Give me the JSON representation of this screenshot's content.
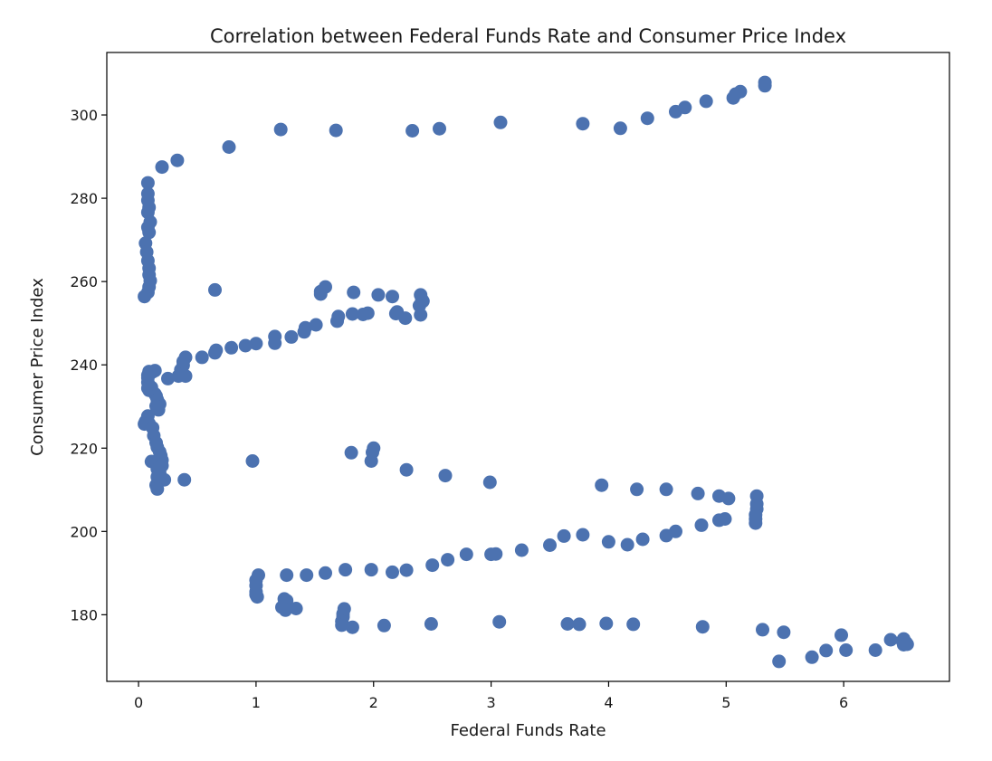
{
  "chart_data": {
    "type": "scatter",
    "title": "Correlation between Federal Funds Rate and Consumer Price Index",
    "xlabel": "Federal Funds Rate",
    "ylabel": "Consumer Price Index",
    "xlim": [
      -0.27,
      6.9
    ],
    "ylim": [
      164,
      315
    ],
    "xticks": [
      0,
      1,
      2,
      3,
      4,
      5,
      6
    ],
    "yticks": [
      180,
      200,
      220,
      240,
      260,
      280,
      300
    ],
    "grid": false,
    "legend": "none",
    "marker_color": "#4c72b0",
    "points": [
      [
        5.33,
        307.0
      ],
      [
        5.33,
        307.8
      ],
      [
        5.12,
        305.6
      ],
      [
        5.08,
        305.0
      ],
      [
        5.06,
        304.1
      ],
      [
        4.83,
        303.3
      ],
      [
        4.65,
        301.8
      ],
      [
        4.57,
        300.8
      ],
      [
        4.33,
        299.2
      ],
      [
        4.1,
        296.8
      ],
      [
        3.78,
        297.9
      ],
      [
        3.08,
        298.2
      ],
      [
        2.56,
        296.7
      ],
      [
        2.33,
        296.2
      ],
      [
        1.68,
        296.3
      ],
      [
        1.21,
        296.5
      ],
      [
        0.77,
        292.3
      ],
      [
        0.33,
        289.1
      ],
      [
        0.2,
        287.5
      ],
      [
        0.08,
        283.7
      ],
      [
        0.08,
        281.1
      ],
      [
        0.08,
        279.5
      ],
      [
        0.09,
        277.8
      ],
      [
        0.08,
        276.6
      ],
      [
        0.1,
        274.3
      ],
      [
        0.08,
        273.0
      ],
      [
        0.09,
        271.8
      ],
      [
        0.06,
        269.2
      ],
      [
        0.07,
        267.1
      ],
      [
        0.08,
        265.0
      ],
      [
        0.09,
        263.2
      ],
      [
        0.09,
        261.6
      ],
      [
        0.1,
        260.2
      ],
      [
        0.09,
        258.7
      ],
      [
        0.08,
        257.4
      ],
      [
        0.05,
        256.4
      ],
      [
        0.65,
        258.0
      ],
      [
        1.55,
        257.6
      ],
      [
        1.55,
        257.0
      ],
      [
        1.59,
        258.7
      ],
      [
        1.83,
        257.4
      ],
      [
        2.04,
        256.8
      ],
      [
        2.16,
        256.4
      ],
      [
        2.4,
        256.8
      ],
      [
        2.41,
        255.7
      ],
      [
        2.42,
        255.3
      ],
      [
        2.39,
        254.2
      ],
      [
        2.4,
        252.0
      ],
      [
        2.2,
        252.7
      ],
      [
        2.27,
        251.2
      ],
      [
        2.19,
        252.3
      ],
      [
        1.95,
        252.4
      ],
      [
        1.91,
        252.1
      ],
      [
        1.82,
        252.2
      ],
      [
        1.7,
        251.6
      ],
      [
        1.69,
        250.5
      ],
      [
        1.51,
        249.6
      ],
      [
        1.42,
        248.9
      ],
      [
        1.41,
        247.9
      ],
      [
        1.3,
        246.7
      ],
      [
        1.16,
        246.8
      ],
      [
        1.16,
        245.2
      ],
      [
        1.0,
        245.1
      ],
      [
        0.91,
        244.6
      ],
      [
        0.79,
        244.1
      ],
      [
        0.66,
        243.5
      ],
      [
        0.65,
        242.9
      ],
      [
        0.54,
        241.8
      ],
      [
        0.4,
        241.8
      ],
      [
        0.38,
        240.8
      ],
      [
        0.38,
        239.9
      ],
      [
        0.36,
        238.8
      ],
      [
        0.37,
        237.7
      ],
      [
        0.34,
        237.3
      ],
      [
        0.25,
        236.7
      ],
      [
        0.4,
        237.3
      ],
      [
        0.12,
        238.3
      ],
      [
        0.14,
        238.6
      ],
      [
        0.09,
        238.4
      ],
      [
        0.08,
        237.5
      ],
      [
        0.08,
        236.9
      ],
      [
        0.08,
        235.8
      ],
      [
        0.09,
        235.1
      ],
      [
        0.08,
        234.4
      ],
      [
        0.09,
        233.9
      ],
      [
        0.11,
        234.6
      ],
      [
        0.14,
        233.0
      ],
      [
        0.15,
        232.5
      ],
      [
        0.16,
        231.6
      ],
      [
        0.18,
        230.6
      ],
      [
        0.15,
        230.1
      ],
      [
        0.17,
        229.2
      ],
      [
        0.08,
        227.7
      ],
      [
        0.06,
        226.4
      ],
      [
        0.05,
        225.8
      ],
      [
        0.09,
        225.9
      ],
      [
        0.12,
        224.9
      ],
      [
        0.13,
        223.0
      ],
      [
        0.15,
        221.3
      ],
      [
        0.16,
        220.2
      ],
      [
        0.18,
        219.1
      ],
      [
        0.19,
        218.2
      ],
      [
        0.2,
        217.1
      ],
      [
        0.11,
        216.8
      ],
      [
        0.15,
        216.2
      ],
      [
        0.2,
        215.8
      ],
      [
        0.16,
        215.0
      ],
      [
        0.18,
        214.1
      ],
      [
        0.16,
        213.1
      ],
      [
        0.22,
        212.4
      ],
      [
        0.17,
        211.9
      ],
      [
        0.15,
        211.1
      ],
      [
        0.16,
        210.2
      ],
      [
        0.39,
        212.4
      ],
      [
        0.97,
        216.9
      ],
      [
        1.81,
        218.9
      ],
      [
        2.0,
        220.0
      ],
      [
        1.99,
        219.0
      ],
      [
        1.98,
        216.9
      ],
      [
        2.28,
        214.8
      ],
      [
        2.61,
        213.4
      ],
      [
        2.99,
        211.8
      ],
      [
        3.94,
        211.1
      ],
      [
        4.24,
        210.1
      ],
      [
        4.49,
        210.1
      ],
      [
        4.76,
        209.1
      ],
      [
        4.94,
        208.5
      ],
      [
        5.02,
        207.9
      ],
      [
        5.26,
        208.5
      ],
      [
        5.26,
        206.6
      ],
      [
        5.26,
        205.4
      ],
      [
        5.25,
        204.0
      ],
      [
        5.25,
        203.0
      ],
      [
        5.25,
        202.0
      ],
      [
        4.99,
        203.0
      ],
      [
        4.94,
        202.7
      ],
      [
        4.79,
        201.5
      ],
      [
        4.57,
        200.0
      ],
      [
        4.49,
        199.0
      ],
      [
        4.29,
        198.1
      ],
      [
        4.16,
        196.8
      ],
      [
        4.0,
        197.5
      ],
      [
        3.78,
        199.2
      ],
      [
        3.62,
        198.9
      ],
      [
        3.5,
        196.7
      ],
      [
        3.26,
        195.5
      ],
      [
        3.04,
        194.6
      ],
      [
        3.0,
        194.5
      ],
      [
        2.79,
        194.5
      ],
      [
        2.63,
        193.2
      ],
      [
        2.5,
        191.9
      ],
      [
        2.28,
        190.7
      ],
      [
        2.16,
        190.2
      ],
      [
        1.98,
        190.8
      ],
      [
        1.76,
        190.8
      ],
      [
        1.59,
        190.0
      ],
      [
        1.43,
        189.5
      ],
      [
        1.26,
        189.5
      ],
      [
        1.02,
        189.5
      ],
      [
        1.0,
        188.3
      ],
      [
        1.0,
        187.0
      ],
      [
        1.0,
        185.5
      ],
      [
        1.0,
        184.8
      ],
      [
        1.01,
        184.3
      ],
      [
        1.24,
        183.8
      ],
      [
        1.26,
        183.4
      ],
      [
        1.25,
        182.9
      ],
      [
        1.22,
        181.8
      ],
      [
        1.34,
        181.5
      ],
      [
        1.25,
        181.1
      ],
      [
        1.74,
        180.2
      ],
      [
        1.75,
        181.4
      ],
      [
        1.74,
        179.5
      ],
      [
        1.73,
        178.4
      ],
      [
        1.73,
        177.5
      ],
      [
        1.82,
        177.0
      ],
      [
        2.09,
        177.4
      ],
      [
        2.49,
        177.8
      ],
      [
        3.07,
        178.3
      ],
      [
        3.65,
        177.8
      ],
      [
        3.75,
        177.7
      ],
      [
        3.98,
        177.9
      ],
      [
        4.21,
        177.7
      ],
      [
        4.8,
        177.1
      ],
      [
        5.31,
        176.4
      ],
      [
        5.49,
        175.8
      ],
      [
        5.98,
        175.1
      ],
      [
        6.4,
        174.0
      ],
      [
        6.5,
        173.7
      ],
      [
        6.51,
        174.2
      ],
      [
        6.53,
        173.3
      ],
      [
        6.51,
        172.8
      ],
      [
        6.54,
        172.9
      ],
      [
        6.02,
        171.5
      ],
      [
        5.85,
        171.4
      ],
      [
        6.27,
        171.5
      ],
      [
        5.73,
        169.8
      ],
      [
        5.45,
        168.8
      ]
    ]
  }
}
